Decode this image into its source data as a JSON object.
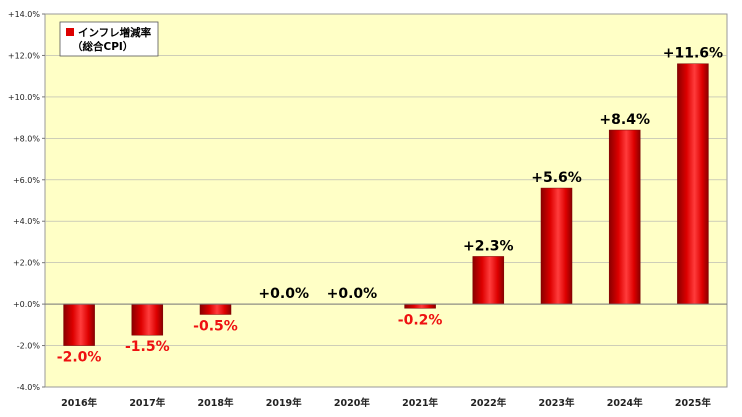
{
  "chart_data": {
    "type": "bar",
    "categories": [
      "2016年",
      "2017年",
      "2018年",
      "2019年",
      "2020年",
      "2021年",
      "2022年",
      "2023年",
      "2024年",
      "2025年"
    ],
    "series": [
      {
        "name": "インフレ増減率（総合CPI）",
        "values": [
          -2.0,
          -1.5,
          -0.5,
          0.0,
          0.0,
          -0.2,
          2.3,
          5.6,
          8.4,
          11.6
        ]
      }
    ],
    "data_labels": [
      "-2.0%",
      "-1.5%",
      "-0.5%",
      "+0.0%",
      "+0.0%",
      "-0.2%",
      "+2.3%",
      "+5.6%",
      "+8.4%",
      "+11.6%"
    ],
    "y_ticks": [
      -4,
      -2,
      0,
      2,
      4,
      6,
      8,
      10,
      12,
      14
    ],
    "y_tick_labels": [
      "-4.0%",
      "-2.0%",
      "+0.0%",
      "+2.0%",
      "+4.0%",
      "+6.0%",
      "+8.0%",
      "+10.0%",
      "+12.0%",
      "+14.0%"
    ],
    "ylim": [
      -4,
      14
    ],
    "title": "",
    "xlabel": "",
    "ylabel": "",
    "legend": {
      "line1": "インフレ増減率",
      "line2": "（総合CPI）",
      "position": "top-left"
    },
    "grid": true,
    "colors": {
      "plot_background": "#ffffc6",
      "bar": "#dd0000",
      "bar_dark": "#8a0000",
      "bar_light": "#ff3c3c",
      "positive_label": "#000000",
      "negative_label": "#ee1111",
      "grid": "#b0b0b0"
    }
  }
}
